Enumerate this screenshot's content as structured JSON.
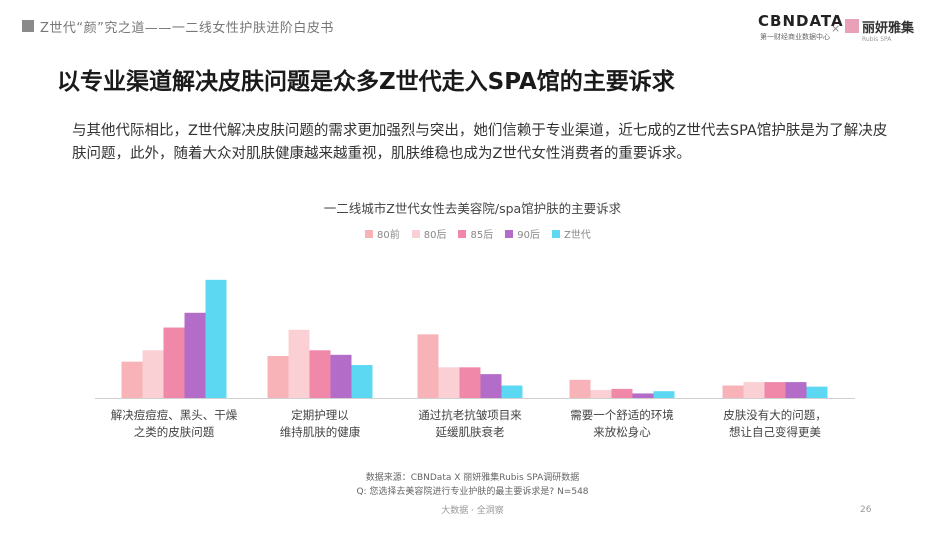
{
  "header": {
    "title": "Z世代“颜”究之道——一二线女性护肤进阶白皮书"
  },
  "logos": {
    "cbn": "CBNDATA",
    "cbn_sub": "第一财经商业数据中心",
    "x": "×",
    "partner": "丽妍雅集",
    "partner_sub": "Rubis SPA"
  },
  "main_title": "以专业渠道解决皮肤问题是众多Z世代走入SPA馆的主要诉求",
  "description": "与其他代际相比，Z世代解决皮肤问题的需求更加强烈与突出，她们信赖于专业渠道，近七成的Z世代去SPA馆护肤是为了解决皮肤问题，此外，随着大众对肌肤健康越来越重视，肌肤维稳也成为Z世代女性消费者的重要诉求。",
  "chart_data": {
    "type": "bar",
    "title": "一二线城市Z世代女性去美容院/spa馆护肤的主要诉求",
    "categories": [
      [
        "解决痘痘痘、黑头、干燥",
        "之类的皮肤问题"
      ],
      [
        "定期护理以",
        "维持肌肤的健康"
      ],
      [
        "通过抗老抗皱项目来",
        "延缓肌肤衰老"
      ],
      [
        "需要一个舒适的环境",
        "来放松身心"
      ],
      [
        "皮肤没有大的问题，",
        "想让自己变得更美"
      ]
    ],
    "series": [
      {
        "name": "80前",
        "color": "#f7b3b8",
        "values": [
          32,
          37,
          56,
          16,
          11
        ]
      },
      {
        "name": "80后",
        "color": "#fbd0d4",
        "values": [
          42,
          60,
          27,
          7,
          14
        ]
      },
      {
        "name": "85后",
        "color": "#f088aa",
        "values": [
          62,
          42,
          27,
          8,
          14
        ]
      },
      {
        "name": "90后",
        "color": "#b46cc9",
        "values": [
          75,
          38,
          21,
          4,
          14
        ]
      },
      {
        "name": "Z世代",
        "color": "#5cd8f3",
        "values": [
          104,
          29,
          11,
          6,
          10
        ]
      }
    ],
    "ylim": [
      0,
      110
    ],
    "grid": false,
    "legend": "top-center"
  },
  "source": {
    "line1": "数据来源：CBNData X 丽妍雅集Rubis SPA调研数据",
    "line2": "Q: 您选择去美容院进行专业护肤的最主要诉求是? N=548"
  },
  "footer": "大数据 · 全洞察",
  "page_number": "26"
}
